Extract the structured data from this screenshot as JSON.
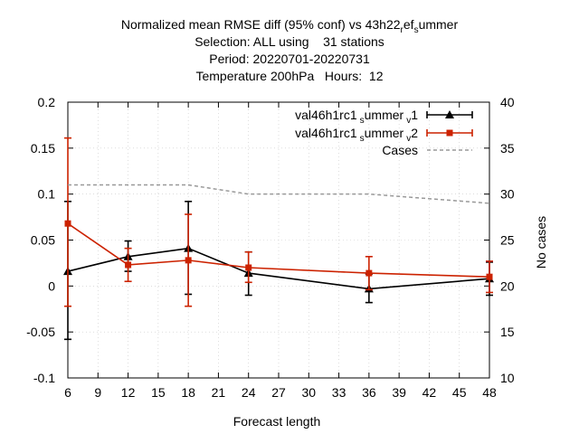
{
  "chart_data": {
    "type": "line",
    "title_lines": [
      "Normalized mean RMSE diff (95% conf) vs 43h22_ref_summer",
      "Selection: ALL using    31 stations",
      "Period: 20220701-20220731",
      "Temperature 200hPa   Hours:  12"
    ],
    "xlabel": "Forecast length",
    "ylabel": "",
    "y2label": "No cases",
    "xlim": [
      6,
      48
    ],
    "ylim": [
      -0.1,
      0.2
    ],
    "y2lim": [
      10,
      40
    ],
    "xticks": [
      6,
      9,
      12,
      15,
      18,
      21,
      24,
      27,
      30,
      33,
      36,
      39,
      42,
      45,
      48
    ],
    "yticks": [
      -0.1,
      -0.05,
      0,
      0.05,
      0.1,
      0.15,
      0.2
    ],
    "ytick_labels": [
      "-0.1",
      "-0.05",
      "0",
      "0.05",
      "0.1",
      "0.15",
      "0.2"
    ],
    "y2ticks": [
      10,
      15,
      20,
      25,
      30,
      35,
      40
    ],
    "grid": true,
    "legend_position": "top-right",
    "series": [
      {
        "name": "val46h1rc1_summer_v1",
        "legend": {
          "base": "val46h1rc1",
          "s1": "s",
          "m1": "ummer",
          "s2": "v",
          "m2": "1"
        },
        "color": "#000000",
        "marker": "triangle",
        "x": [
          6,
          12,
          18,
          24,
          36,
          48
        ],
        "y": [
          0.016,
          0.032,
          0.041,
          0.014,
          -0.003,
          0.008
        ],
        "err_low": [
          -0.058,
          0.016,
          -0.009,
          -0.01,
          -0.018,
          -0.01
        ],
        "err_high": [
          0.092,
          0.049,
          0.092,
          0.037,
          0.013,
          0.026
        ]
      },
      {
        "name": "val46h1rc1_summer_v2",
        "legend": {
          "base": "val46h1rc1",
          "s1": "s",
          "m1": "ummer",
          "s2": "v",
          "m2": "2"
        },
        "color": "#cc2200",
        "marker": "square",
        "x": [
          6,
          12,
          18,
          24,
          36,
          48
        ],
        "y": [
          0.068,
          0.023,
          0.028,
          0.02,
          0.014,
          0.01
        ],
        "err_low": [
          -0.022,
          0.005,
          -0.022,
          0.004,
          -0.004,
          -0.007
        ],
        "err_high": [
          0.161,
          0.041,
          0.078,
          0.037,
          0.032,
          0.027
        ]
      },
      {
        "name": "Cases",
        "color": "#999999",
        "dashed": true,
        "axis": "y2",
        "x": [
          6,
          18,
          24,
          36,
          48
        ],
        "y": [
          31,
          31,
          30,
          30,
          29
        ]
      }
    ]
  }
}
